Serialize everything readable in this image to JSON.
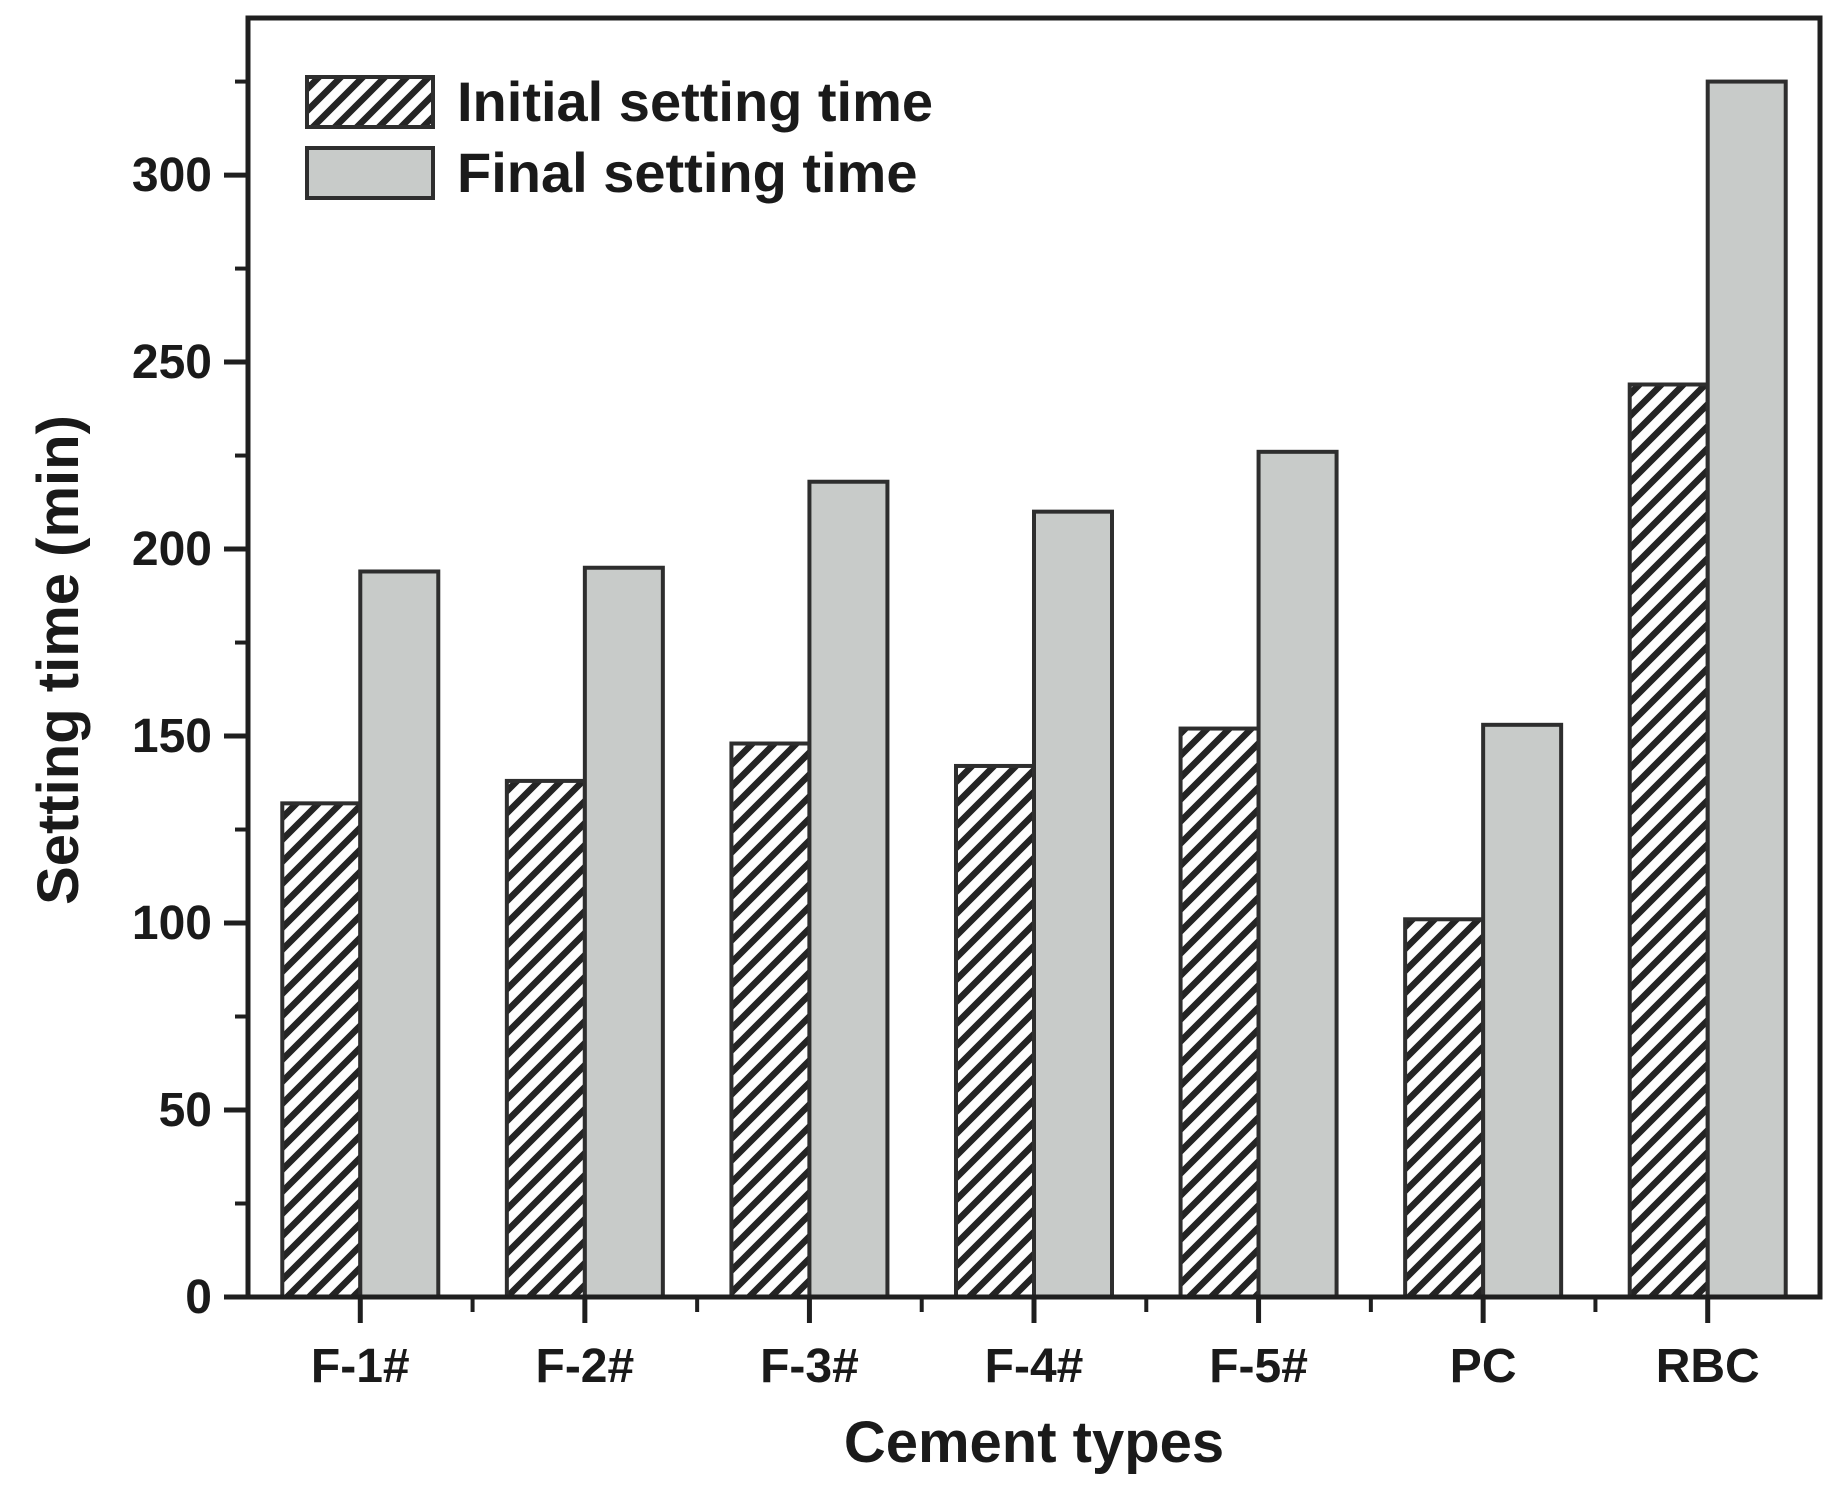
{
  "figure": {
    "background": "#ffffff"
  },
  "colors": {
    "text": "#1a1a1a",
    "axis": "#1f1f1f",
    "bar_stroke": "#2e2e2e",
    "gray_fill": "#c8cbc9",
    "hatch_background": "#fefefe",
    "hatch_line": "#242424"
  },
  "legend": {
    "items": [
      {
        "label": "Initial setting time",
        "swatch": "hatched-diagonal"
      },
      {
        "label": "Final setting time",
        "swatch": "solid-gray"
      }
    ]
  },
  "chart_data": {
    "type": "bar",
    "title": "",
    "xlabel": "Cement types",
    "ylabel": "Setting time (min)",
    "categories": [
      "F-1#",
      "F-2#",
      "F-3#",
      "F-4#",
      "F-5#",
      "PC",
      "RBC"
    ],
    "series": [
      {
        "name": "Initial setting time",
        "style": "hatched-diagonal",
        "values": [
          132,
          138,
          148,
          142,
          152,
          101,
          244
        ]
      },
      {
        "name": "Final setting time",
        "style": "solid-gray",
        "values": [
          194,
          195,
          218,
          210,
          226,
          153,
          325
        ]
      }
    ],
    "ylim": [
      0,
      342
    ],
    "yticks_major": [
      0,
      50,
      100,
      150,
      200,
      250,
      300
    ],
    "yticks_minor": [
      25,
      75,
      125,
      175,
      225,
      275,
      325
    ],
    "grid": false,
    "legend_position": "upper-left-inside",
    "units": "min"
  }
}
